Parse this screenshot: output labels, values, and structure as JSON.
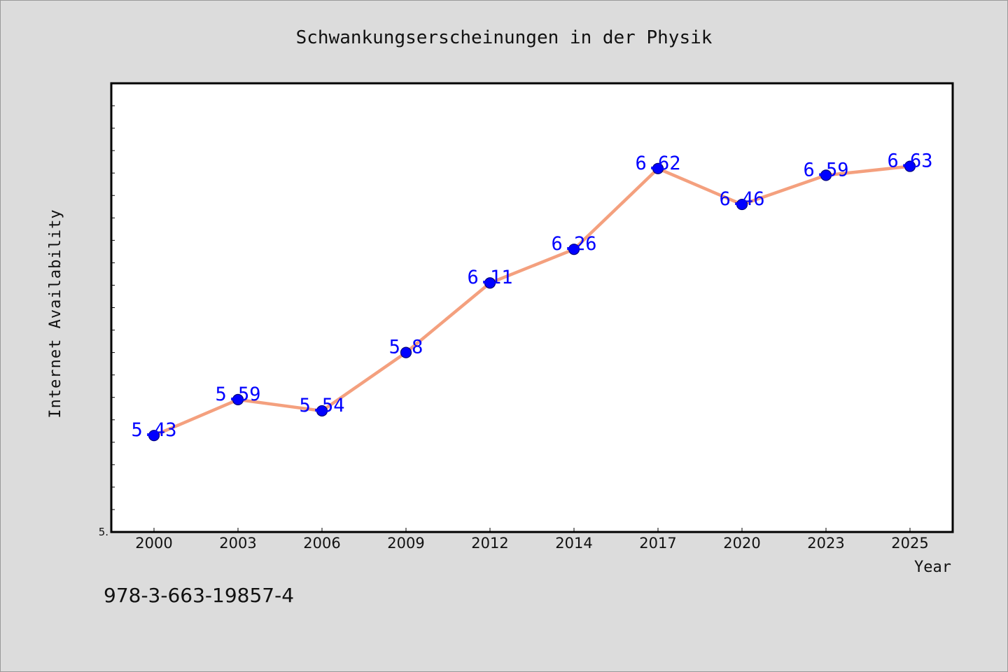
{
  "chart_data": {
    "type": "line",
    "title": "Schwankungserscheinungen in der Physik",
    "xlabel": "Year",
    "ylabel": "Internet Availability",
    "categories": [
      "2000",
      "2003",
      "2006",
      "2009",
      "2012",
      "2014",
      "2017",
      "2020",
      "2023",
      "2025"
    ],
    "series": [
      {
        "values": [
          5.43,
          5.59,
          5.54,
          5.8,
          6.11,
          6.26,
          6.62,
          6.46,
          6.59,
          6.63
        ],
        "data_labels": [
          "5.43",
          "5.59",
          "5.54",
          "5.8",
          "6.11",
          "6.26",
          "6.62",
          "6.46",
          "6.59",
          "6.63"
        ]
      }
    ],
    "ylim": [
      5.0,
      7.0
    ],
    "y_tick_labels": [
      {
        "value": 5.0,
        "label": "5."
      }
    ],
    "grid": false,
    "colors": {
      "line": "#f4a07e",
      "marker": "#0000ff",
      "marker_edge": "#00007a",
      "data_label": "#0000ff",
      "plot_bg": "#ffffff",
      "figure_bg": "#dcdcdc"
    }
  },
  "footer_text": "978-3-663-19857-4"
}
